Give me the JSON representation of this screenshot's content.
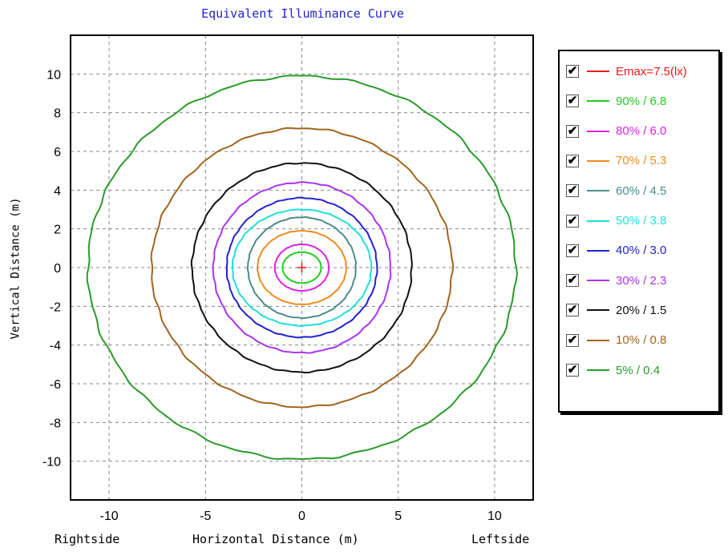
{
  "chart_data": {
    "type": "line",
    "title": "Equivalent Illuminance Curve",
    "xlabel": "Horizontal Distance (m)",
    "ylabel": "Vertical Distance (m)",
    "x_side_labels": {
      "left": "Rightside",
      "right": "Leftside"
    },
    "xlim": [
      -12,
      12
    ],
    "ylim": [
      -12,
      12
    ],
    "x_ticks": [
      -10,
      -5,
      0,
      5,
      10
    ],
    "y_ticks": [
      -10,
      -8,
      -6,
      -4,
      -2,
      0,
      2,
      4,
      6,
      8,
      10
    ],
    "grid": true,
    "legend_position": "right",
    "emax": {
      "label": "Emax=7.5(lx)",
      "color": "#e81c1c",
      "x": 0,
      "y": 0,
      "checked": true
    },
    "series": [
      {
        "name": "90% / 6.8",
        "color": "#22cc22",
        "rx": 1.0,
        "ry": 0.8,
        "checked": true
      },
      {
        "name": "80% / 6.0",
        "color": "#dd22dd",
        "rx": 1.4,
        "ry": 1.2,
        "checked": true
      },
      {
        "name": "70% / 5.3",
        "color": "#f08c1c",
        "rx": 2.3,
        "ry": 1.9,
        "checked": true
      },
      {
        "name": "60% / 4.5",
        "color": "#4a8c8c",
        "rx": 2.8,
        "ry": 2.6,
        "checked": true
      },
      {
        "name": "50% / 3.8",
        "color": "#22dddd",
        "rx": 3.6,
        "ry": 3.0,
        "checked": true
      },
      {
        "name": "40% / 3.0",
        "color": "#2222cc",
        "rx": 3.9,
        "ry": 3.6,
        "checked": true
      },
      {
        "name": "30% / 2.3",
        "color": "#aa33ee",
        "rx": 4.6,
        "ry": 4.4,
        "checked": true
      },
      {
        "name": "20% / 1.5",
        "color": "#111111",
        "rx": 5.7,
        "ry": 5.4,
        "checked": true
      },
      {
        "name": "10% / 0.8",
        "color": "#a0641e",
        "rx": 7.8,
        "ry": 7.2,
        "checked": true
      },
      {
        "name": "5% / 0.4",
        "color": "#2a9a2a",
        "rx": 11.1,
        "ry": 9.9,
        "checked": true
      }
    ]
  }
}
